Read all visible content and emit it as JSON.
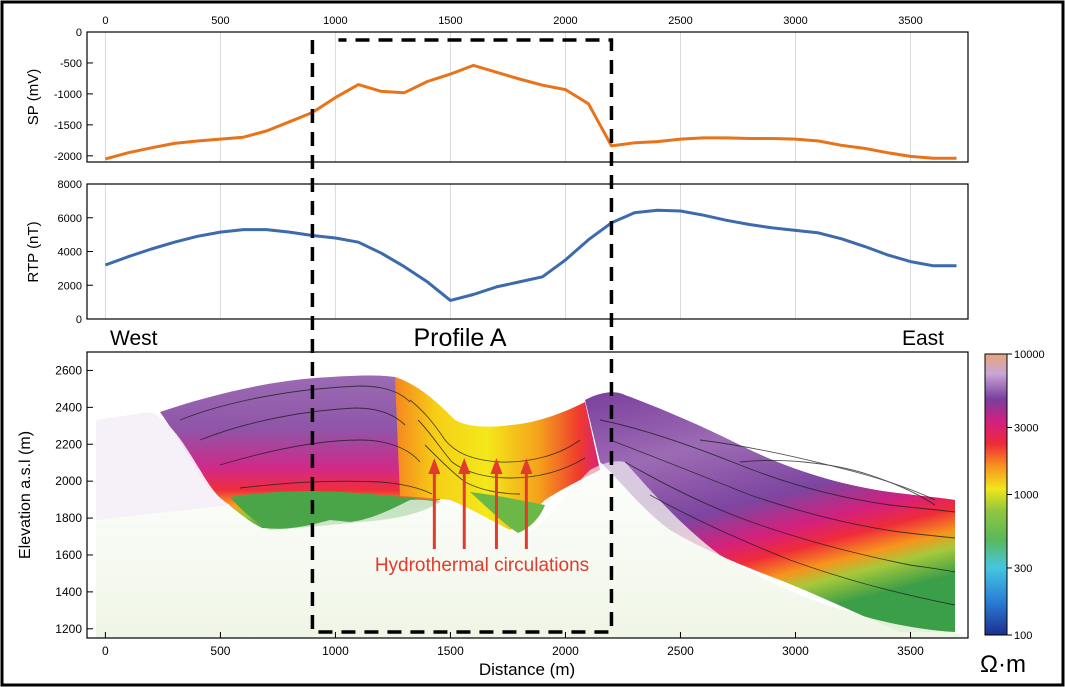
{
  "chart_data": [
    {
      "type": "line",
      "panel": "sp",
      "ylabel": "SP (mV)",
      "ylim": [
        -2100,
        0
      ],
      "xlim": [
        -80,
        3750
      ],
      "x_ticks": [
        "0",
        "500",
        "1000",
        "1500",
        "2000",
        "2500",
        "3000",
        "3500"
      ],
      "y_ticks": [
        "0",
        "-500",
        "-1000",
        "-1500",
        "-2000"
      ],
      "line_color": "#e8731a",
      "series": [
        {
          "x": [
            0,
            100,
            200,
            300,
            400,
            500,
            600,
            700,
            800,
            900,
            1000,
            1100,
            1200,
            1300,
            1400,
            1500,
            1600,
            1700,
            1800,
            1900,
            2000,
            2100,
            2200,
            2300,
            2400,
            2500,
            2600,
            2700,
            2800,
            2900,
            3000,
            3100,
            3200,
            3300,
            3400,
            3500,
            3600,
            3700
          ],
          "values": [
            -2050,
            -1950,
            -1870,
            -1800,
            -1760,
            -1730,
            -1700,
            -1600,
            -1450,
            -1300,
            -1060,
            -850,
            -960,
            -980,
            -800,
            -680,
            -540,
            -650,
            -760,
            -860,
            -930,
            -1160,
            -1840,
            -1790,
            -1770,
            -1730,
            -1710,
            -1710,
            -1720,
            -1720,
            -1730,
            -1760,
            -1830,
            -1880,
            -1950,
            -2010,
            -2040,
            -2040
          ]
        }
      ]
    },
    {
      "type": "line",
      "panel": "rtp",
      "ylabel": "RTP (nT)",
      "ylim": [
        0,
        8000
      ],
      "xlim": [
        -80,
        3750
      ],
      "y_ticks": [
        "0",
        "2000",
        "4000",
        "6000",
        "8000"
      ],
      "line_color": "#3c6aad",
      "series": [
        {
          "x": [
            0,
            100,
            200,
            300,
            400,
            500,
            600,
            700,
            800,
            900,
            1000,
            1100,
            1200,
            1300,
            1400,
            1500,
            1600,
            1700,
            1800,
            1900,
            2000,
            2100,
            2200,
            2300,
            2400,
            2500,
            2600,
            2700,
            2800,
            2900,
            3000,
            3100,
            3200,
            3300,
            3400,
            3500,
            3600,
            3700
          ],
          "values": [
            3200,
            3700,
            4150,
            4550,
            4900,
            5150,
            5300,
            5300,
            5150,
            4950,
            4800,
            4550,
            3900,
            3100,
            2200,
            1100,
            1450,
            1900,
            2200,
            2500,
            3500,
            4700,
            5700,
            6300,
            6450,
            6400,
            6150,
            5850,
            5600,
            5400,
            5250,
            5100,
            4750,
            4300,
            3800,
            3400,
            3150,
            3150
          ]
        }
      ],
      "west_label": "West",
      "east_label": "East",
      "profile_label": "Profile A"
    },
    {
      "type": "heatmap",
      "panel": "resistivity",
      "xlabel": "Distance (m)",
      "ylabel": "Elevation a.s.l (m)",
      "ylim": [
        1150,
        2700
      ],
      "xlim": [
        -80,
        3750
      ],
      "x_ticks": [
        "0",
        "500",
        "1000",
        "1500",
        "2000",
        "2500",
        "3000",
        "3500"
      ],
      "y_ticks": [
        "1200",
        "1400",
        "1600",
        "1800",
        "2000",
        "2200",
        "2400",
        "2600"
      ],
      "colorbar": {
        "ticks": [
          "100",
          "300",
          "1000",
          "3000",
          "10000"
        ],
        "scale": "log",
        "unit": "Ω·m"
      },
      "annotation": "Hydrothermal circulations",
      "arrows_x": [
        1430,
        1560,
        1700,
        1830
      ],
      "window_x": [
        900,
        2200
      ]
    }
  ]
}
